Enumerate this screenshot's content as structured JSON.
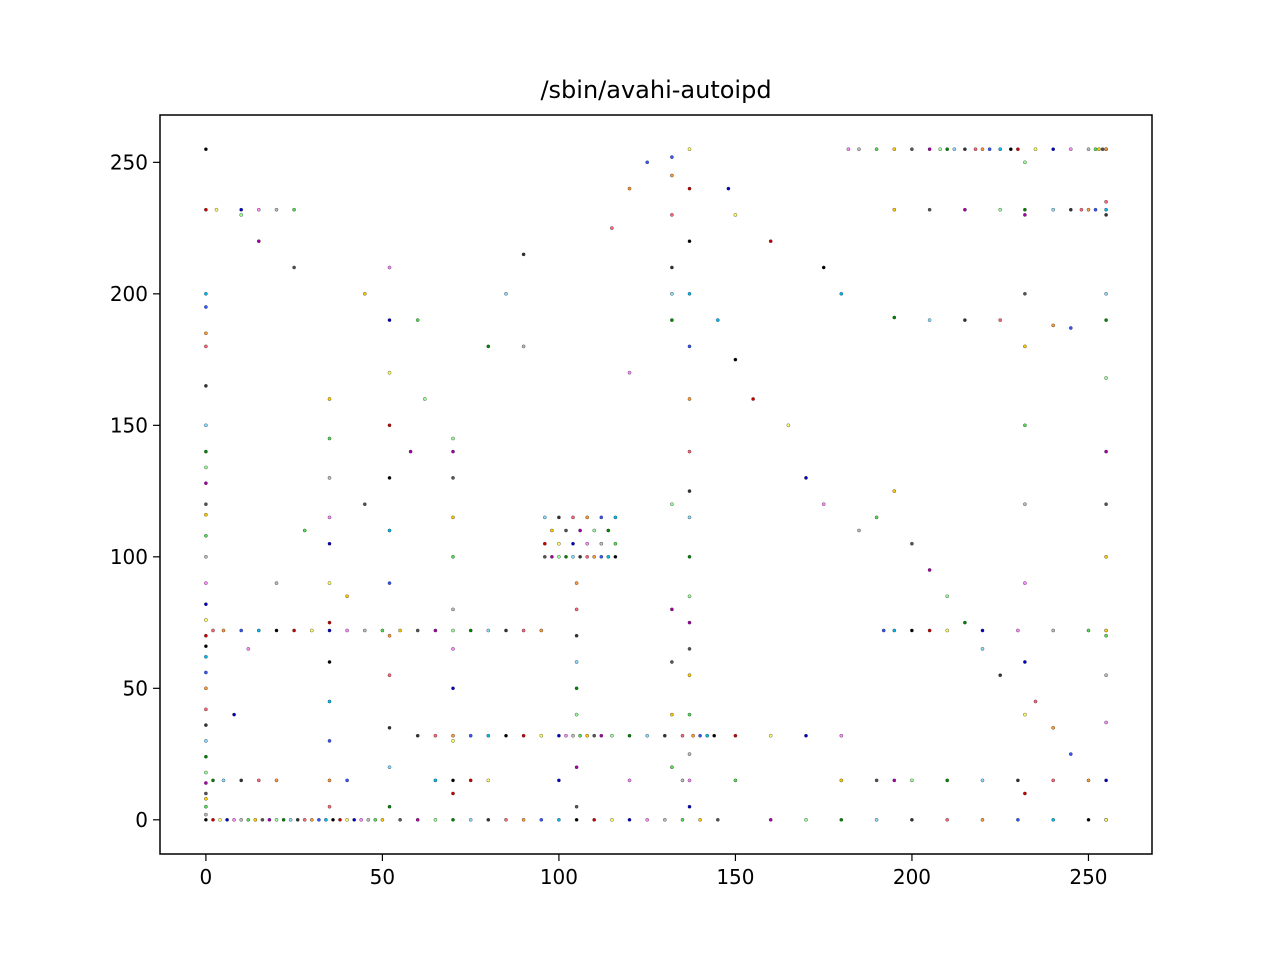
{
  "chart_data": {
    "type": "scatter",
    "title": "/sbin/avahi-autoipd",
    "xlabel": "",
    "ylabel": "",
    "xlim": [
      -13,
      268
    ],
    "ylim": [
      -13,
      268
    ],
    "x_ticks": [
      0,
      50,
      100,
      150,
      200,
      250
    ],
    "y_ticks": [
      0,
      50,
      100,
      150,
      200,
      250
    ],
    "grid": false,
    "legend": "none",
    "point_colors": [
      "#000000",
      "#333333",
      "#555555",
      "#0000cc",
      "#3355ff",
      "#008800",
      "#55dd55",
      "#cc0000",
      "#ff6677",
      "#aa00aa",
      "#ff88ff",
      "#00bbee",
      "#88ddff",
      "#ffcc00",
      "#ffff66",
      "#ff9933",
      "#99ff99",
      "#bbbbbb"
    ],
    "series": [
      {
        "note": "bottom row",
        "x": [
          0,
          2,
          4,
          6,
          8,
          10,
          12,
          14,
          16,
          18,
          20,
          22,
          24,
          26,
          28,
          30,
          32,
          34,
          36,
          38,
          40,
          42,
          44,
          46,
          48,
          50,
          55,
          60,
          65,
          70,
          75,
          80,
          85,
          90,
          95,
          100,
          105,
          110,
          115,
          120,
          125,
          130,
          135,
          140,
          145,
          160,
          170,
          180,
          190,
          200,
          210,
          220,
          230,
          240,
          250,
          255
        ],
        "y": [
          0,
          0,
          0,
          0,
          0,
          0,
          0,
          0,
          0,
          0,
          0,
          0,
          0,
          0,
          0,
          0,
          0,
          0,
          0,
          0,
          0,
          0,
          0,
          0,
          0,
          0,
          0,
          0,
          0,
          0,
          0,
          0,
          0,
          0,
          0,
          0,
          0,
          0,
          0,
          0,
          0,
          0,
          0,
          0,
          0,
          0,
          0,
          0,
          0,
          0,
          0,
          0,
          0,
          0,
          0,
          0
        ]
      },
      {
        "note": "left column",
        "x": [
          0,
          0,
          0,
          0,
          0,
          0,
          0,
          0,
          0,
          0,
          0,
          0,
          0,
          0,
          0,
          0,
          0,
          0,
          0,
          0,
          0,
          0,
          0,
          0,
          0,
          0,
          0,
          0,
          0,
          0,
          0,
          0
        ],
        "y": [
          2,
          5,
          8,
          10,
          14,
          18,
          24,
          30,
          36,
          42,
          50,
          56,
          62,
          66,
          70,
          76,
          82,
          90,
          100,
          108,
          116,
          120,
          128,
          134,
          140,
          150,
          165,
          180,
          185,
          195,
          200,
          255
        ]
      },
      {
        "note": "top row",
        "x": [
          182,
          185,
          190,
          195,
          200,
          205,
          208,
          210,
          212,
          215,
          218,
          220,
          222,
          225,
          228,
          230,
          235,
          240,
          245,
          250,
          252,
          253,
          254,
          255
        ],
        "y": [
          255,
          255,
          255,
          255,
          255,
          255,
          255,
          255,
          255,
          255,
          255,
          255,
          255,
          255,
          255,
          255,
          255,
          255,
          255,
          255,
          255,
          255,
          255,
          255
        ]
      },
      {
        "note": "row y=32",
        "x": [
          60,
          65,
          70,
          75,
          80,
          85,
          90,
          95,
          100,
          102,
          104,
          106,
          108,
          110,
          112,
          115,
          120,
          125,
          130,
          135,
          138,
          140,
          142,
          144,
          150,
          160,
          170,
          180
        ],
        "y": [
          32,
          32,
          32,
          32,
          32,
          32,
          32,
          32,
          32,
          32,
          32,
          32,
          32,
          32,
          32,
          32,
          32,
          32,
          32,
          32,
          32,
          32,
          32,
          32,
          32,
          32,
          32,
          32
        ]
      },
      {
        "note": "central cluster",
        "x": [
          96,
          98,
          100,
          102,
          104,
          106,
          108,
          110,
          112,
          114,
          116,
          96,
          100,
          104,
          108,
          112,
          116,
          98,
          102,
          106,
          110,
          114,
          96,
          100,
          104,
          108,
          112,
          116
        ],
        "y": [
          100,
          100,
          100,
          100,
          100,
          100,
          100,
          100,
          100,
          100,
          100,
          105,
          105,
          105,
          105,
          105,
          105,
          110,
          110,
          110,
          110,
          110,
          115,
          115,
          115,
          115,
          115,
          115
        ]
      },
      {
        "note": "column x=137",
        "x": [
          137,
          137,
          137,
          137,
          137,
          137,
          137,
          137,
          137,
          137,
          137,
          137,
          137,
          137,
          137,
          137,
          137,
          137
        ],
        "y": [
          5,
          15,
          25,
          40,
          55,
          65,
          75,
          85,
          100,
          115,
          125,
          140,
          160,
          180,
          200,
          220,
          240,
          255
        ]
      },
      {
        "note": "column x=132",
        "x": [
          132,
          132,
          132,
          132,
          132,
          132,
          132,
          132,
          132,
          132,
          132
        ],
        "y": [
          20,
          40,
          60,
          80,
          120,
          190,
          200,
          210,
          230,
          245,
          252
        ]
      },
      {
        "note": "right column",
        "x": [
          255,
          255,
          255,
          255,
          255,
          255,
          255,
          255,
          255,
          255,
          255,
          255,
          255,
          255
        ],
        "y": [
          0,
          15,
          37,
          55,
          70,
          100,
          120,
          140,
          168,
          190,
          200,
          230,
          235,
          255
        ]
      },
      {
        "note": "column x=232",
        "x": [
          232,
          232,
          232,
          232,
          232,
          232,
          232,
          232,
          232,
          232
        ],
        "y": [
          10,
          40,
          60,
          90,
          120,
          150,
          180,
          200,
          230,
          250
        ]
      },
      {
        "note": "column x=35",
        "x": [
          35,
          35,
          35,
          35,
          35,
          35,
          35,
          35,
          35,
          35,
          35,
          35
        ],
        "y": [
          5,
          15,
          30,
          45,
          60,
          75,
          90,
          105,
          115,
          130,
          145,
          160
        ]
      },
      {
        "note": "column x=52",
        "x": [
          52,
          52,
          52,
          52,
          52,
          52,
          52,
          52,
          52,
          52,
          52,
          52
        ],
        "y": [
          5,
          20,
          35,
          55,
          70,
          90,
          110,
          130,
          150,
          170,
          190,
          210
        ]
      },
      {
        "note": "column x=105",
        "x": [
          105,
          105,
          105,
          105,
          105,
          105,
          105,
          105
        ],
        "y": [
          5,
          20,
          40,
          50,
          60,
          70,
          80,
          90
        ]
      },
      {
        "note": "column x=70",
        "x": [
          70,
          70,
          70,
          70,
          70,
          70,
          70,
          70,
          70,
          70
        ],
        "y": [
          10,
          30,
          50,
          65,
          80,
          100,
          115,
          130,
          140,
          145
        ]
      },
      {
        "note": "row y=72",
        "x": [
          2,
          5,
          10,
          15,
          20,
          25,
          30,
          35,
          40,
          45,
          50,
          55,
          60,
          65,
          70,
          75,
          80,
          85,
          90,
          95,
          192,
          195,
          200,
          205,
          210,
          220,
          230,
          240,
          250,
          255
        ],
        "y": [
          72,
          72,
          72,
          72,
          72,
          72,
          72,
          72,
          72,
          72,
          72,
          72,
          72,
          72,
          72,
          72,
          72,
          72,
          72,
          72,
          72,
          72,
          72,
          72,
          72,
          72,
          72,
          72,
          72,
          72
        ]
      },
      {
        "note": "row y=15",
        "x": [
          2,
          5,
          10,
          15,
          20,
          40,
          65,
          70,
          75,
          80,
          100,
          120,
          135,
          150,
          180,
          190,
          195,
          200,
          210,
          220,
          230,
          240,
          250
        ],
        "y": [
          15,
          15,
          15,
          15,
          15,
          15,
          15,
          15,
          15,
          15,
          15,
          15,
          15,
          15,
          15,
          15,
          15,
          15,
          15,
          15,
          15,
          15,
          15
        ]
      },
      {
        "note": "row y=232",
        "x": [
          0,
          3,
          10,
          15,
          20,
          25,
          195,
          205,
          215,
          225,
          232,
          240,
          245,
          248,
          250,
          252,
          255
        ],
        "y": [
          232,
          232,
          232,
          232,
          232,
          232,
          232,
          232,
          232,
          232,
          232,
          232,
          232,
          232,
          232,
          232,
          232
        ]
      },
      {
        "note": "scattered",
        "x": [
          8,
          12,
          20,
          28,
          40,
          45,
          58,
          62,
          80,
          85,
          90,
          115,
          120,
          125,
          145,
          150,
          155,
          165,
          170,
          175,
          185,
          190,
          195,
          200,
          205,
          210,
          215,
          220,
          225,
          235,
          240,
          245,
          180,
          175,
          160,
          150,
          148,
          120,
          90,
          60,
          45,
          25,
          15,
          10,
          195,
          205,
          215,
          225,
          240,
          245
        ],
        "y": [
          40,
          65,
          90,
          110,
          85,
          120,
          140,
          160,
          180,
          200,
          215,
          225,
          240,
          250,
          190,
          175,
          160,
          150,
          130,
          120,
          110,
          115,
          125,
          105,
          95,
          85,
          75,
          65,
          55,
          45,
          35,
          25,
          200,
          210,
          220,
          230,
          240,
          170,
          180,
          190,
          200,
          210,
          220,
          230,
          191,
          190,
          190,
          190,
          188,
          187
        ]
      }
    ]
  }
}
